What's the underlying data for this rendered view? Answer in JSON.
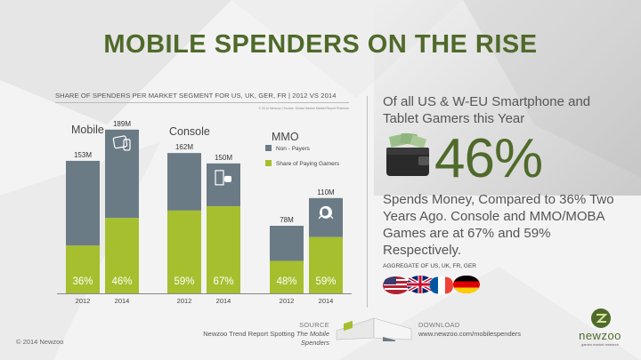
{
  "title": "MOBILE SPENDERS ON THE RISE",
  "chart_subtitle": "SHARE OF SPENDERS PER MARKET SEGMENT FOR US, UK, GER, FR | 2012 VS 2014",
  "chart_credit": "© 2014 Newzoo | Source: Global Games Market Report Premium",
  "chart_data": {
    "type": "bar",
    "stacked": true,
    "segments": [
      "Mobile",
      "Console",
      "MMO"
    ],
    "categories": [
      "2012",
      "2014"
    ],
    "totals_millions": [
      [
        153,
        189
      ],
      [
        162,
        150
      ],
      [
        78,
        110
      ]
    ],
    "total_labels": [
      [
        "153M",
        "189M"
      ],
      [
        "162M",
        "150M"
      ],
      [
        "78M",
        "110M"
      ]
    ],
    "paying_share_percent": [
      [
        36,
        46
      ],
      [
        59,
        67
      ],
      [
        48,
        59
      ]
    ],
    "paying_labels": [
      [
        "36%",
        "46%"
      ],
      [
        "59%",
        "67%"
      ],
      [
        "48%",
        "59%"
      ]
    ],
    "series": [
      {
        "name": "Non - Payers",
        "color": "#6b7b86"
      },
      {
        "name": "Share of Paying Gamers",
        "color": "#a6bf2e"
      }
    ],
    "legend_position": "right of Console group",
    "ylim": [
      0,
      195
    ]
  },
  "right_panel": {
    "heading": "Of all US & W-EU Smartphone and Tablet Gamers this Year",
    "big_percent": "46%",
    "body": "Spends Money, Compared to 36% Two Years Ago. Console and MMO/MOBA Games are at 67% and 59% Respectively.",
    "aggregate": "AGGREGATE OF US, UK, FR, GER",
    "flags": [
      "us-flag",
      "uk-flag",
      "fr-flag",
      "de-flag"
    ]
  },
  "footer": {
    "source_label": "SOURCE",
    "source_text_prefix": "Newzoo Trend Report Spotting ",
    "source_text_italic": "The Mobile Spenders",
    "download_label": "DOWNLOAD",
    "download_url": "www.newzoo.com/mobilespenders",
    "copyright": "© 2014 Newzoo",
    "logo_name": "newzoo",
    "logo_tagline": "games market research"
  },
  "colors": {
    "title_green": "#4f6a2a",
    "bar_grey": "#6b7b86",
    "bar_green": "#a6bf2e",
    "background": "#f3f3f3"
  }
}
